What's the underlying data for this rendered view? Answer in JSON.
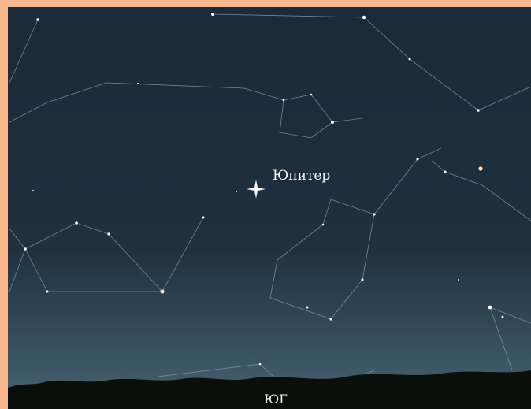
{
  "labels": {
    "planet": "Юпитер",
    "direction": "ЮГ"
  }
}
